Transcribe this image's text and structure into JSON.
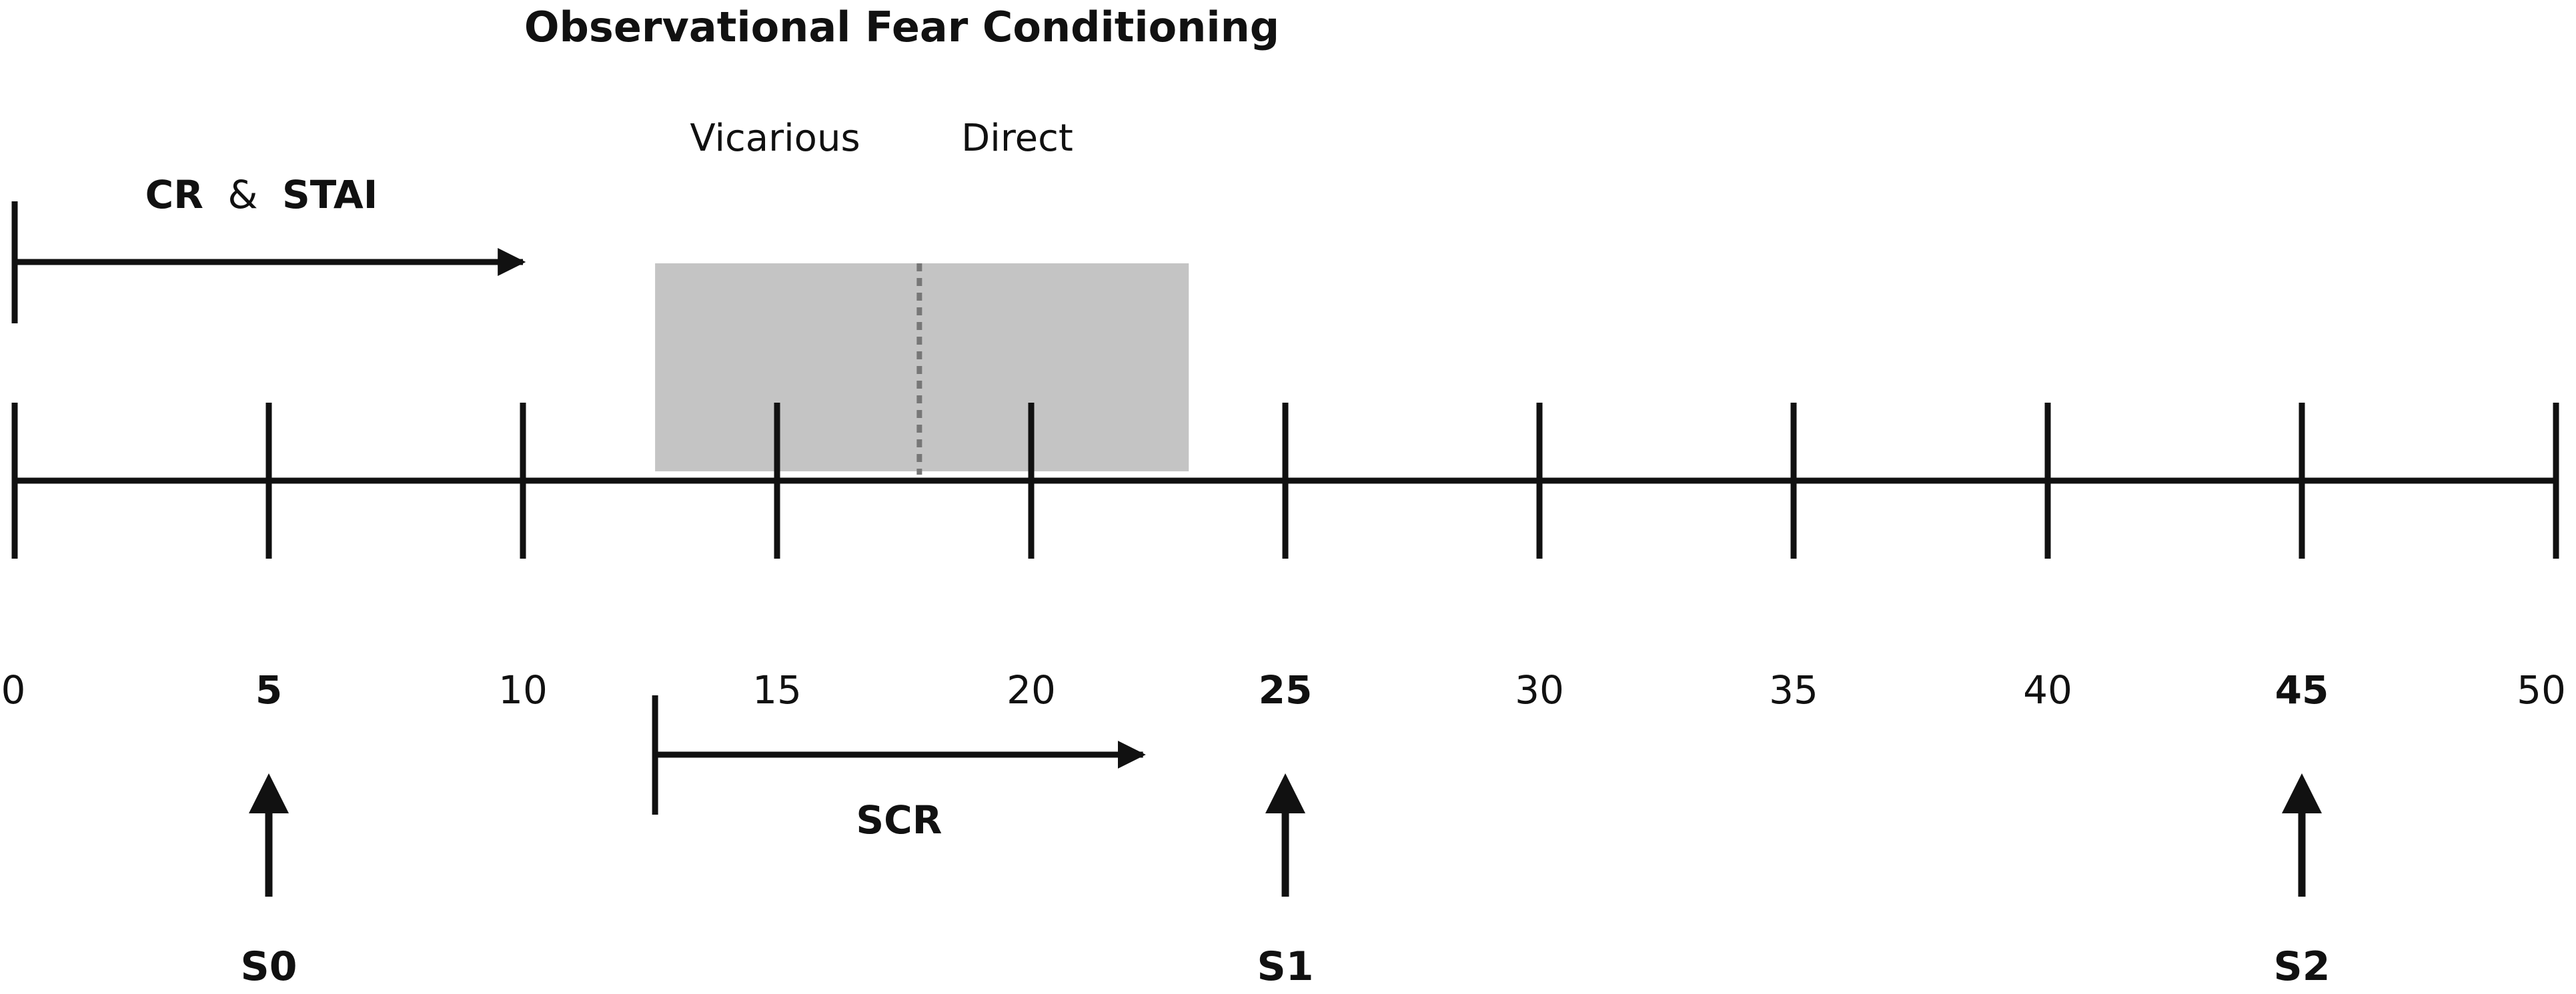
{
  "title": "Observational Fear Conditioning",
  "phases": {
    "vicarious_label": "Vicarious",
    "direct_label": "Direct",
    "start": 12.6,
    "split": 17.8,
    "end": 23.1,
    "fill_color": "#c4c4c4"
  },
  "timeline": {
    "min": 0,
    "max": 50,
    "ticks": [
      {
        "value": 0,
        "label": "0",
        "bold": false
      },
      {
        "value": 5,
        "label": "5",
        "bold": true
      },
      {
        "value": 10,
        "label": "10",
        "bold": false
      },
      {
        "value": 15,
        "label": "15",
        "bold": false
      },
      {
        "value": 20,
        "label": "20",
        "bold": false
      },
      {
        "value": 25,
        "label": "25",
        "bold": true
      },
      {
        "value": 30,
        "label": "30",
        "bold": false
      },
      {
        "value": 35,
        "label": "35",
        "bold": false
      },
      {
        "value": 40,
        "label": "40",
        "bold": false
      },
      {
        "value": 45,
        "label": "45",
        "bold": true
      },
      {
        "value": 50,
        "label": "50",
        "bold": false
      }
    ]
  },
  "measures": {
    "cr_stai": {
      "cr_label": "CR",
      "amp_label": "&",
      "stai_label": "STAI",
      "start": 0,
      "end": 10
    },
    "scr": {
      "label": "SCR",
      "start": 12.6,
      "end": 22.2
    }
  },
  "sessions": [
    {
      "label": "S0",
      "at": 5
    },
    {
      "label": "S1",
      "at": 25
    },
    {
      "label": "S2",
      "at": 45
    }
  ],
  "colors": {
    "ink": "#111111",
    "phase_fill": "#c4c4c4",
    "phase_divider": "#777777"
  }
}
